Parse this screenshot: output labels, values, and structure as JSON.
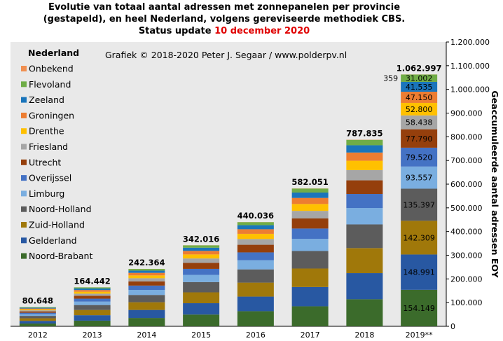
{
  "title": {
    "line1": "Evolutie van totaal aantal adressen met zonnepanelen per provincie",
    "line2": "(gestapeld), en heel Nederland, volgens gereviseerde methodiek CBS.",
    "line3_prefix": "Status update",
    "line3_date": "10 december 2020"
  },
  "credit": "Grafiek  © 2018-2020 Peter J. Segaar / www.polderpv.nl",
  "colors": {
    "Noord-Brabant": "#3b6b2b",
    "Gelderland": "#2858a2",
    "Zuid-Holland": "#a0780a",
    "Noord-Holland": "#5c5c5c",
    "Limburg": "#7aaee0",
    "Overijssel": "#4472c4",
    "Utrecht": "#953f0c",
    "Friesland": "#a6a6a6",
    "Drenthe": "#ffc000",
    "Groningen": "#ed7d31",
    "Zeeland": "#1a75bb",
    "Flevoland": "#70ad47",
    "Onbekend": "#f08f50",
    "plot_bg": "#e9e9e9"
  },
  "chart_data": {
    "type": "bar",
    "stacked": true,
    "categories": [
      "2012",
      "2013",
      "2014",
      "2015",
      "2016",
      "2017",
      "2018",
      "2019**"
    ],
    "totals": [
      80648,
      164442,
      242364,
      342016,
      440036,
      582051,
      787835,
      1062997
    ],
    "total_labels": [
      "80.648",
      "164.442",
      "242.364",
      "342.016",
      "440.036",
      "582.051",
      "787.835",
      "1.062.997"
    ],
    "legend_title": "Nederland",
    "legend_order": [
      "Onbekend",
      "Flevoland",
      "Zeeland",
      "Groningen",
      "Drenthe",
      "Friesland",
      "Utrecht",
      "Overijssel",
      "Limburg",
      "Noord-Holland",
      "Zuid-Holland",
      "Gelderland",
      "Noord-Brabant"
    ],
    "stack_order": [
      "Noord-Brabant",
      "Gelderland",
      "Zuid-Holland",
      "Noord-Holland",
      "Limburg",
      "Overijssel",
      "Utrecht",
      "Friesland",
      "Drenthe",
      "Groningen",
      "Zeeland",
      "Flevoland",
      "Onbekend"
    ],
    "shares": [
      0.145,
      0.14,
      0.134,
      0.127,
      0.088,
      0.075,
      0.073,
      0.055,
      0.05,
      0.044,
      0.039,
      0.029,
      0.001
    ],
    "series_2019": [
      {
        "name": "Noord-Brabant",
        "value": 154149,
        "label": "154.149"
      },
      {
        "name": "Gelderland",
        "value": 148991,
        "label": "148.991"
      },
      {
        "name": "Zuid-Holland",
        "value": 142309,
        "label": "142.309"
      },
      {
        "name": "Noord-Holland",
        "value": 135397,
        "label": "135.397"
      },
      {
        "name": "Limburg",
        "value": 93557,
        "label": "93.557"
      },
      {
        "name": "Overijssel",
        "value": 79520,
        "label": "79.520"
      },
      {
        "name": "Utrecht",
        "value": 77790,
        "label": "77.790"
      },
      {
        "name": "Friesland",
        "value": 58438,
        "label": "58.438"
      },
      {
        "name": "Drenthe",
        "value": 52800,
        "label": "52.800"
      },
      {
        "name": "Groningen",
        "value": 47150,
        "label": "47.150"
      },
      {
        "name": "Zeeland",
        "value": 41535,
        "label": "41.535"
      },
      {
        "name": "Flevoland",
        "value": 31002,
        "label": "31.002"
      },
      {
        "name": "Onbekend",
        "value": 359,
        "label": "359"
      }
    ],
    "ylabel": "Geaccumuleerde aantal adressen EOY",
    "ylim": [
      0,
      1200000
    ],
    "yticks": [
      0,
      100000,
      200000,
      300000,
      400000,
      500000,
      600000,
      700000,
      800000,
      900000,
      1000000,
      1100000,
      1200000
    ],
    "ytick_labels": [
      "0",
      "100.000",
      "200.000",
      "300.000",
      "400.000",
      "500.000",
      "600.000",
      "700.000",
      "800.000",
      "900.000",
      "1.000.000",
      "1.100.000",
      "1.200.000"
    ],
    "legend_position": "top-left"
  }
}
